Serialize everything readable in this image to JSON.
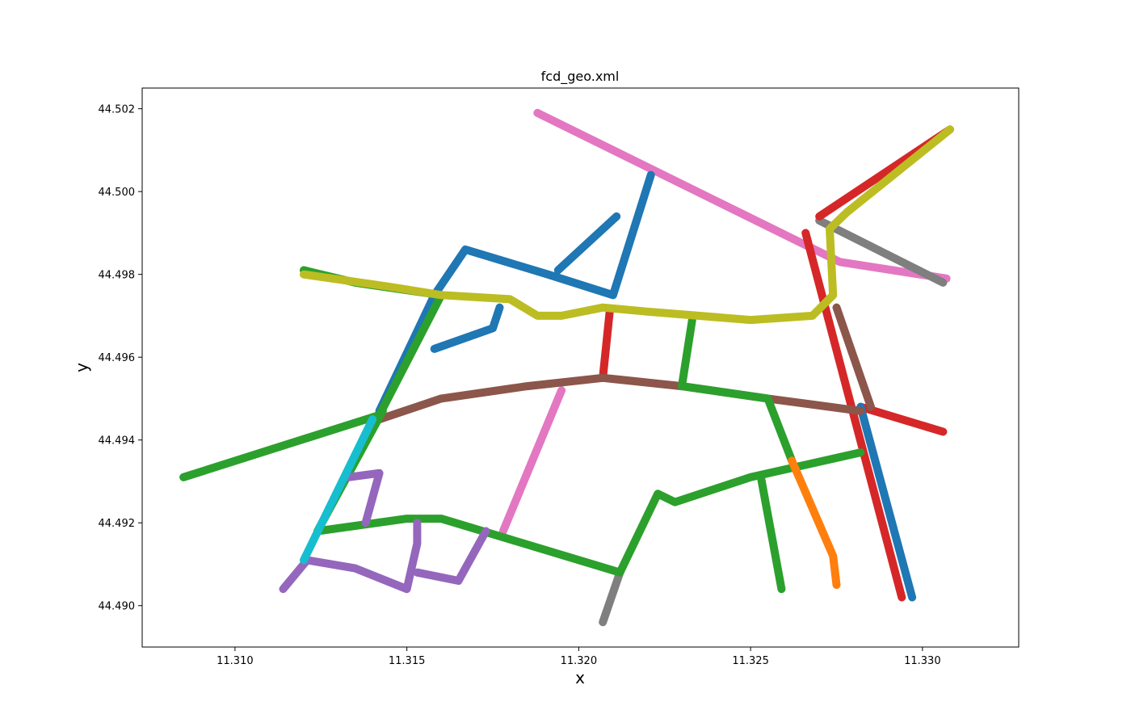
{
  "chart_data": {
    "type": "line",
    "title": "fcd_geo.xml",
    "xlabel": "x",
    "ylabel": "y",
    "xlim": [
      11.3073,
      11.3328
    ],
    "ylim": [
      44.489,
      44.5025
    ],
    "x_ticks": [
      "11.310",
      "11.315",
      "11.320",
      "11.325",
      "11.330"
    ],
    "y_ticks": [
      "44.490",
      "44.492",
      "44.494",
      "44.496",
      "44.498",
      "44.500",
      "44.502"
    ],
    "grid": false,
    "legend": "none",
    "series": [
      {
        "color": "#e377c2",
        "points": [
          [
            11.3188,
            44.5019
          ],
          [
            11.3276,
            44.4983
          ],
          [
            11.3307,
            44.4979
          ]
        ]
      },
      {
        "color": "#e377c2",
        "points": [
          [
            11.3178,
            44.4918
          ],
          [
            11.3195,
            44.4952
          ]
        ]
      },
      {
        "color": "#7f7f7f",
        "points": [
          [
            11.327,
            44.4993
          ],
          [
            11.3306,
            44.4978
          ]
        ]
      },
      {
        "color": "#7f7f7f",
        "points": [
          [
            11.3207,
            44.4896
          ],
          [
            11.3212,
            44.4908
          ]
        ]
      },
      {
        "color": "#d62728",
        "points": [
          [
            11.327,
            44.4994
          ],
          [
            11.3308,
            44.5015
          ]
        ]
      },
      {
        "color": "#d62728",
        "points": [
          [
            11.3266,
            44.499
          ],
          [
            11.3294,
            44.4902
          ]
        ]
      },
      {
        "color": "#d62728",
        "points": [
          [
            11.3207,
            44.4955
          ],
          [
            11.3209,
            44.4971
          ]
        ]
      },
      {
        "color": "#d62728",
        "points": [
          [
            11.3282,
            44.4948
          ],
          [
            11.3306,
            44.4942
          ]
        ]
      },
      {
        "color": "#1f77b4",
        "points": [
          [
            11.3221,
            44.5004
          ],
          [
            11.321,
            44.4975
          ],
          [
            11.3191,
            44.498
          ],
          [
            11.3167,
            44.4986
          ],
          [
            11.3158,
            44.4975
          ],
          [
            11.3142,
            44.4947
          ]
        ]
      },
      {
        "color": "#1f77b4",
        "points": [
          [
            11.3194,
            44.4981
          ],
          [
            11.3211,
            44.4994
          ]
        ]
      },
      {
        "color": "#1f77b4",
        "points": [
          [
            11.3158,
            44.4962
          ],
          [
            11.3175,
            44.4967
          ],
          [
            11.3177,
            44.4972
          ]
        ]
      },
      {
        "color": "#1f77b4",
        "points": [
          [
            11.3282,
            44.4948
          ],
          [
            11.3297,
            44.4902
          ]
        ]
      },
      {
        "color": "#8c564b",
        "points": [
          [
            11.3275,
            44.4972
          ],
          [
            11.3285,
            44.4948
          ]
        ]
      },
      {
        "color": "#8c564b",
        "points": [
          [
            11.3142,
            44.4945
          ],
          [
            11.316,
            44.495
          ],
          [
            11.3185,
            44.4953
          ],
          [
            11.3207,
            44.4955
          ],
          [
            11.323,
            44.4953
          ],
          [
            11.3255,
            44.495
          ],
          [
            11.3282,
            44.4947
          ]
        ]
      },
      {
        "color": "#2ca02c",
        "points": [
          [
            11.3085,
            44.4931
          ],
          [
            11.3142,
            44.4946
          ],
          [
            11.316,
            44.4975
          ]
        ]
      },
      {
        "color": "#2ca02c",
        "points": [
          [
            11.312,
            44.4981
          ],
          [
            11.3135,
            44.4978
          ],
          [
            11.316,
            44.4975
          ]
        ]
      },
      {
        "color": "#2ca02c",
        "points": [
          [
            11.3143,
            44.4947
          ],
          [
            11.3124,
            44.4918
          ],
          [
            11.315,
            44.4921
          ],
          [
            11.316,
            44.4921
          ],
          [
            11.318,
            44.4916
          ],
          [
            11.3212,
            44.4908
          ],
          [
            11.3223,
            44.4927
          ],
          [
            11.3228,
            44.4925
          ],
          [
            11.325,
            44.4931
          ],
          [
            11.3282,
            44.4937
          ]
        ]
      },
      {
        "color": "#2ca02c",
        "points": [
          [
            11.3253,
            44.4931
          ],
          [
            11.3259,
            44.4904
          ]
        ]
      },
      {
        "color": "#2ca02c",
        "points": [
          [
            11.3233,
            44.4969
          ],
          [
            11.323,
            44.4953
          ],
          [
            11.3255,
            44.495
          ],
          [
            11.3262,
            44.4935
          ]
        ]
      },
      {
        "color": "#ff7f0e",
        "points": [
          [
            11.3262,
            44.4935
          ],
          [
            11.3274,
            44.4912
          ],
          [
            11.3275,
            44.4905
          ]
        ]
      },
      {
        "color": "#9467bd",
        "points": [
          [
            11.3114,
            44.4904
          ],
          [
            11.3121,
            44.4911
          ],
          [
            11.3135,
            44.4909
          ],
          [
            11.315,
            44.4904
          ],
          [
            11.3153,
            44.4915
          ],
          [
            11.3153,
            44.492
          ]
        ]
      },
      {
        "color": "#9467bd",
        "points": [
          [
            11.3153,
            44.4908
          ],
          [
            11.3165,
            44.4906
          ],
          [
            11.3173,
            44.4918
          ]
        ]
      },
      {
        "color": "#9467bd",
        "points": [
          [
            11.3133,
            44.4931
          ],
          [
            11.3142,
            44.4932
          ],
          [
            11.3138,
            44.492
          ]
        ]
      },
      {
        "color": "#17becf",
        "points": [
          [
            11.312,
            44.4911
          ],
          [
            11.314,
            44.4945
          ]
        ]
      },
      {
        "color": "#bcbd22",
        "points": [
          [
            11.3308,
            44.5015
          ],
          [
            11.3278,
            44.4995
          ],
          [
            11.3273,
            44.4991
          ],
          [
            11.3274,
            44.4975
          ],
          [
            11.3268,
            44.497
          ],
          [
            11.325,
            44.4969
          ],
          [
            11.322,
            44.4971
          ],
          [
            11.3207,
            44.4972
          ],
          [
            11.3195,
            44.497
          ],
          [
            11.3188,
            44.497
          ],
          [
            11.318,
            44.4974
          ],
          [
            11.316,
            44.4975
          ],
          [
            11.3145,
            44.4977
          ],
          [
            11.312,
            44.498
          ]
        ]
      }
    ]
  }
}
